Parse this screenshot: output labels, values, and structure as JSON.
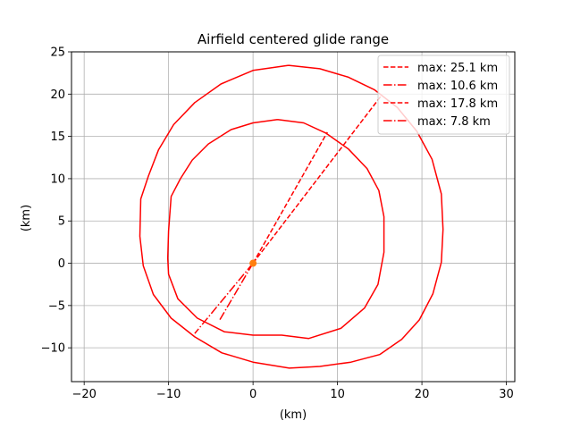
{
  "chart_data": {
    "type": "line",
    "title": "Airfield centered glide range",
    "xlabel": "(km)",
    "ylabel": "(km)",
    "xlim": [
      -21.5,
      31
    ],
    "ylim": [
      -14,
      25
    ],
    "xticks": [
      -20,
      -10,
      0,
      10,
      20,
      30
    ],
    "yticks": [
      -10,
      -5,
      0,
      5,
      10,
      15,
      20,
      25
    ],
    "grid": true,
    "legend_position": "top-right",
    "line_color": "#ff0000",
    "marker_color": "#ff7f0e",
    "airfield": [
      0,
      0
    ],
    "legend": [
      {
        "label": "max: 25.1 km",
        "style": "dashed"
      },
      {
        "label": "max: 10.6 km",
        "style": "dashdot"
      },
      {
        "label": "max: 17.8 km",
        "style": "dashed"
      },
      {
        "label": "max: 7.8 km",
        "style": "dashdot"
      }
    ],
    "series": [
      {
        "kind": "ring",
        "points": [
          [
            4.2,
            23.4
          ],
          [
            7.9,
            23.0
          ],
          [
            11.3,
            22.0
          ],
          [
            14.4,
            20.5
          ],
          [
            17.1,
            18.4
          ],
          [
            19.4,
            15.6
          ],
          [
            21.2,
            12.3
          ],
          [
            22.3,
            8.2
          ],
          [
            22.5,
            4.0
          ],
          [
            22.3,
            0.1
          ],
          [
            21.3,
            -3.6
          ],
          [
            19.7,
            -6.7
          ],
          [
            17.6,
            -9.0
          ],
          [
            15.0,
            -10.8
          ],
          [
            11.6,
            -11.7
          ],
          [
            7.9,
            -12.2
          ],
          [
            4.3,
            -12.4
          ],
          [
            0.0,
            -11.7
          ],
          [
            -3.7,
            -10.6
          ],
          [
            -6.9,
            -8.7
          ],
          [
            -9.7,
            -6.5
          ],
          [
            -11.8,
            -3.7
          ],
          [
            -13.0,
            -0.3
          ],
          [
            -13.4,
            3.2
          ],
          [
            -13.3,
            7.6
          ],
          [
            -12.4,
            10.3
          ],
          [
            -11.2,
            13.4
          ],
          [
            -9.4,
            16.4
          ],
          [
            -6.9,
            19.0
          ],
          [
            -3.8,
            21.2
          ],
          [
            0.0,
            22.8
          ],
          [
            4.2,
            23.4
          ]
        ]
      },
      {
        "kind": "ring",
        "points": [
          [
            2.9,
            17.0
          ],
          [
            6.0,
            16.6
          ],
          [
            8.6,
            15.4
          ],
          [
            11.3,
            13.5
          ],
          [
            13.5,
            11.2
          ],
          [
            14.9,
            8.6
          ],
          [
            15.5,
            5.5
          ],
          [
            15.5,
            1.3
          ],
          [
            14.8,
            -2.5
          ],
          [
            13.2,
            -5.3
          ],
          [
            10.4,
            -7.7
          ],
          [
            6.6,
            -8.9
          ],
          [
            3.4,
            -8.5
          ],
          [
            0.0,
            -8.5
          ],
          [
            -3.4,
            -8.1
          ],
          [
            -6.6,
            -6.5
          ],
          [
            -8.9,
            -4.2
          ],
          [
            -10.0,
            -1.3
          ],
          [
            -10.1,
            0.6
          ],
          [
            -10.0,
            3.8
          ],
          [
            -9.7,
            7.9
          ],
          [
            -8.6,
            10.0
          ],
          [
            -7.2,
            12.2
          ],
          [
            -5.3,
            14.1
          ],
          [
            -2.6,
            15.8
          ],
          [
            0.0,
            16.6
          ],
          [
            2.9,
            17.0
          ]
        ]
      },
      {
        "kind": "ray",
        "style": "dashed",
        "points": [
          [
            0,
            0
          ],
          [
            15.1,
            19.7
          ]
        ]
      },
      {
        "kind": "ray",
        "style": "dashdot",
        "points": [
          [
            0,
            0
          ],
          [
            -6.9,
            -8.3
          ]
        ]
      },
      {
        "kind": "ray",
        "style": "dashed",
        "points": [
          [
            0,
            0
          ],
          [
            8.8,
            15.5
          ]
        ]
      },
      {
        "kind": "ray",
        "style": "dashdot",
        "points": [
          [
            0,
            0
          ],
          [
            -4.0,
            -6.8
          ]
        ]
      }
    ]
  }
}
